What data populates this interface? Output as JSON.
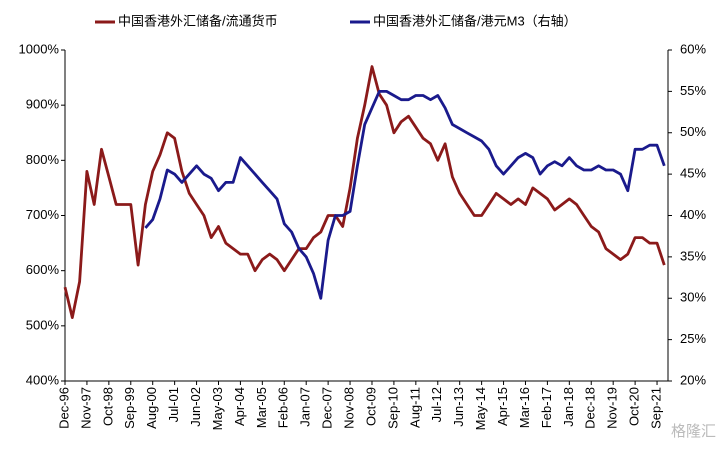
{
  "chart_data": {
    "type": "line",
    "legend": "top",
    "watermark": "格隆汇",
    "categories": [
      "Dec-96",
      null,
      null,
      "Nov-97",
      null,
      null,
      "Oct-98",
      null,
      null,
      "Sep-99",
      null,
      null,
      "Aug-00",
      null,
      null,
      "Jul-01",
      null,
      null,
      "Jun-02",
      null,
      null,
      "May-03",
      null,
      null,
      "Apr-04",
      null,
      null,
      "Mar-05",
      null,
      null,
      "Feb-06",
      null,
      null,
      "Jan-07",
      null,
      null,
      "Dec-07",
      null,
      null,
      "Nov-08",
      null,
      null,
      "Oct-09",
      null,
      null,
      "Sep-10",
      null,
      null,
      "Aug-11",
      null,
      null,
      "Jul-12",
      null,
      null,
      "Jun-13",
      null,
      null,
      "May-14",
      null,
      null,
      "Apr-15",
      null,
      null,
      "Mar-16",
      null,
      null,
      "Feb-17",
      null,
      null,
      "Jan-18",
      null,
      null,
      "Dec-18",
      null,
      null,
      "Nov-19",
      null,
      null,
      "Oct-20",
      null,
      null,
      "Sep-21",
      null
    ],
    "series": [
      {
        "name": "中国香港外汇储备/流通货币",
        "color": "#8b1a1a",
        "axis": "y",
        "values": [
          570,
          515,
          580,
          780,
          720,
          820,
          770,
          720,
          720,
          720,
          610,
          720,
          780,
          810,
          850,
          840,
          780,
          740,
          720,
          700,
          660,
          680,
          650,
          640,
          630,
          630,
          600,
          620,
          630,
          620,
          600,
          620,
          640,
          640,
          660,
          670,
          700,
          700,
          680,
          750,
          840,
          900,
          970,
          920,
          900,
          850,
          870,
          880,
          860,
          840,
          830,
          800,
          830,
          770,
          740,
          720,
          700,
          700,
          720,
          740,
          730,
          720,
          730,
          720,
          750,
          740,
          730,
          710,
          720,
          730,
          720,
          700,
          680,
          670,
          640,
          630,
          620,
          630,
          660,
          660,
          650,
          650,
          610
        ]
      },
      {
        "name": "中国香港外汇储备/港元M3（右轴）",
        "color": "#1a1a8c",
        "axis": "y2",
        "values": [
          null,
          null,
          null,
          null,
          null,
          null,
          null,
          null,
          null,
          null,
          null,
          38.5,
          39.5,
          42,
          45.5,
          45,
          44,
          45,
          46,
          45,
          44.5,
          43,
          44,
          44,
          47,
          46,
          45,
          44,
          43,
          42,
          39,
          38,
          36,
          35,
          33,
          30,
          37,
          40,
          40,
          40.5,
          46,
          51,
          53,
          55,
          55,
          54.5,
          54,
          54,
          54.5,
          54.5,
          54,
          54.5,
          53,
          51,
          50.5,
          50,
          49.5,
          49,
          48,
          46,
          45,
          46,
          47,
          47.5,
          47,
          45,
          46,
          46.5,
          46,
          47,
          46,
          45.5,
          45.5,
          46,
          45.5,
          45.5,
          45,
          43,
          48,
          48,
          48.5,
          48.5,
          46
        ]
      }
    ],
    "ylim": [
      400,
      1000
    ],
    "yticks": [
      {
        "value": 400,
        "label": "400%"
      },
      {
        "value": 500,
        "label": "500%"
      },
      {
        "value": 600,
        "label": "600%"
      },
      {
        "value": 700,
        "label": "700%"
      },
      {
        "value": 800,
        "label": "800%"
      },
      {
        "value": 900,
        "label": "900%"
      },
      {
        "value": 1000,
        "label": "1000%"
      }
    ],
    "y2lim": [
      20,
      60
    ],
    "y2ticks": [
      {
        "value": 20,
        "label": "20%"
      },
      {
        "value": 25,
        "label": "25%"
      },
      {
        "value": 30,
        "label": "30%"
      },
      {
        "value": 35,
        "label": "35%"
      },
      {
        "value": 40,
        "label": "40%"
      },
      {
        "value": 45,
        "label": "45%"
      },
      {
        "value": 50,
        "label": "50%"
      },
      {
        "value": 55,
        "label": "55%"
      },
      {
        "value": 60,
        "label": "60%"
      }
    ],
    "grid": false
  }
}
